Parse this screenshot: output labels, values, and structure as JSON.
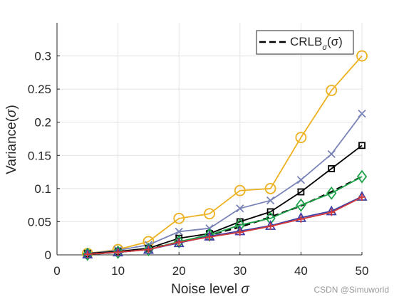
{
  "chart_data": {
    "type": "line",
    "xlabel": "Noise level σ",
    "ylabel": "Variance(σ)",
    "xlim": [
      0,
      50
    ],
    "ylim": [
      0,
      0.35
    ],
    "x_ticks": [
      0,
      10,
      20,
      30,
      40,
      50
    ],
    "y_ticks": [
      0,
      0.05,
      0.1,
      0.15,
      0.2,
      0.25,
      0.3
    ],
    "y_tick_labels": [
      "0",
      "0.05",
      "0.1",
      "0.15",
      "0.2",
      "0.25",
      "0.3"
    ],
    "grid": true,
    "legend_position": "top-right",
    "legend": [
      {
        "label": "CRLB",
        "subscript": "σ",
        "suffix": "(σ)"
      }
    ],
    "x": [
      5,
      10,
      15,
      20,
      25,
      30,
      35,
      40,
      45,
      50
    ],
    "series": [
      {
        "marker": "circle",
        "color": "#EDB120",
        "style": "solid",
        "values": [
          0.002,
          0.008,
          0.02,
          0.055,
          0.062,
          0.097,
          0.1,
          0.177,
          0.248,
          0.3
        ]
      },
      {
        "marker": "x",
        "color": "#7983B7",
        "style": "solid",
        "values": [
          0.002,
          0.007,
          0.015,
          0.035,
          0.04,
          0.07,
          0.082,
          0.113,
          0.152,
          0.213
        ]
      },
      {
        "marker": "square",
        "color": "#000000",
        "style": "solid",
        "values": [
          0.002,
          0.005,
          0.01,
          0.025,
          0.032,
          0.05,
          0.065,
          0.095,
          0.13,
          0.165
        ]
      },
      {
        "name": "CRLB",
        "marker": "none",
        "color": "#000000",
        "style": "dashed",
        "values": [
          0.001,
          0.004,
          0.009,
          0.019,
          0.03,
          0.042,
          0.057,
          0.074,
          0.095,
          0.118
        ]
      },
      {
        "marker": "diamond",
        "color": "#1FA34A",
        "style": "solid",
        "values": [
          0.001,
          0.004,
          0.008,
          0.02,
          0.03,
          0.045,
          0.055,
          0.075,
          0.093,
          0.118
        ]
      },
      {
        "marker": "triangle",
        "color": "#3F3FA6",
        "style": "solid",
        "values": [
          0.001,
          0.004,
          0.008,
          0.018,
          0.028,
          0.036,
          0.044,
          0.056,
          0.066,
          0.088
        ]
      },
      {
        "marker": "plus",
        "color": "#D43A3A",
        "style": "solid",
        "values": [
          0.001,
          0.004,
          0.008,
          0.019,
          0.027,
          0.034,
          0.043,
          0.054,
          0.064,
          0.087
        ]
      }
    ]
  },
  "watermark": "CSDN @Simuworld"
}
